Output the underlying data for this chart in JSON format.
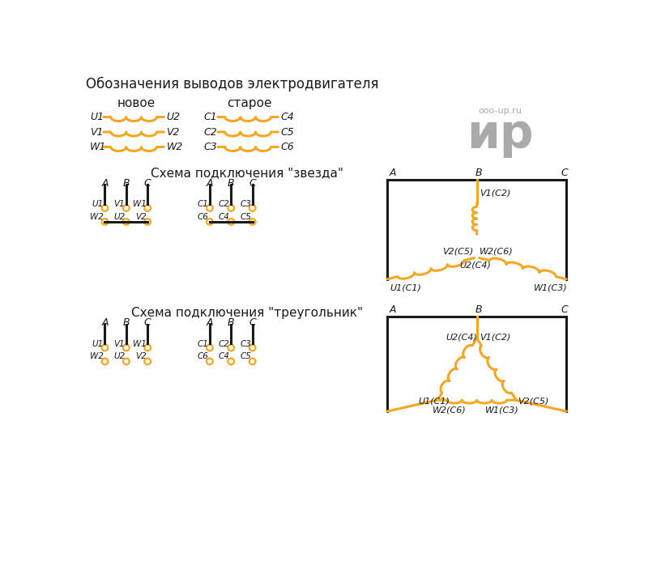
{
  "title": "Обозначения выводов электродвигателя",
  "new_label": "новое",
  "old_label": "старое",
  "orange": "#F5A623",
  "black": "#1a1a1a",
  "gray": "#AAAAAA",
  "bg": "#FFFFFF",
  "coil_rows": [
    [
      "U1",
      "U2",
      "C1",
      "C4"
    ],
    [
      "V1",
      "V2",
      "C2",
      "C5"
    ],
    [
      "W1",
      "W2",
      "C3",
      "C6"
    ]
  ],
  "star_title": "Схема подключения \"звезда\"",
  "triangle_title": "Схема подключения \"треугольник\"",
  "wm1": "ooo-up.ru",
  "wm2": "ир"
}
